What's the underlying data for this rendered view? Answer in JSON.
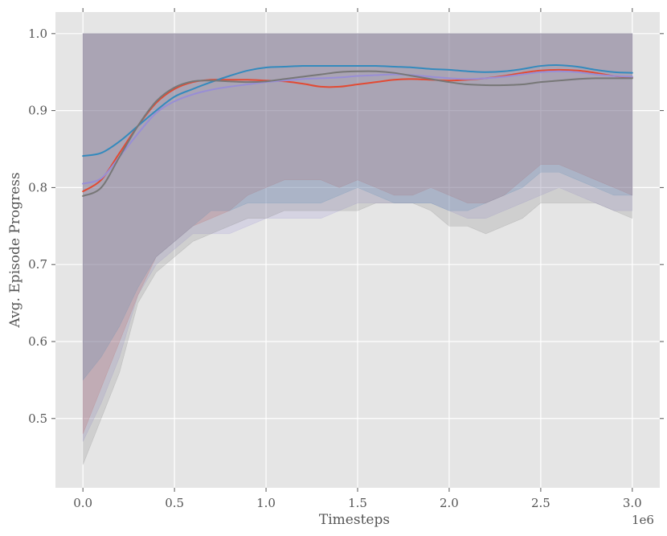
{
  "chart_data": {
    "type": "line",
    "title": "",
    "xlabel": "Timesteps",
    "ylabel": "Avg. Episode Progress",
    "x_offset_label": "1e6",
    "xlim": [
      -0.15,
      3.15
    ],
    "ylim": [
      0.41,
      1.028
    ],
    "x_ticks": [
      0.0,
      0.5,
      1.0,
      1.5,
      2.0,
      2.5,
      3.0
    ],
    "x_tick_labels": [
      "0.0",
      "0.5",
      "1.0",
      "1.5",
      "2.0",
      "2.5",
      "3.0"
    ],
    "y_ticks": [
      0.5,
      0.6,
      0.7,
      0.8,
      0.9,
      1.0
    ],
    "y_tick_labels": [
      "0.5",
      "0.6",
      "0.7",
      "0.8",
      "0.9",
      "1.0"
    ],
    "grid": true,
    "legend": "none",
    "colors": {
      "background": "#e5e5e5",
      "grid": "#ffffff",
      "text": "#555555"
    },
    "series": [
      {
        "color": "#e24a33",
        "x": [
          0.0,
          0.1,
          0.2,
          0.3,
          0.4,
          0.5,
          0.6,
          0.7,
          0.8,
          0.9,
          1.0,
          1.1,
          1.2,
          1.3,
          1.4,
          1.5,
          1.6,
          1.7,
          1.8,
          1.9,
          2.0,
          2.1,
          2.2,
          2.3,
          2.4,
          2.5,
          2.6,
          2.7,
          2.8,
          2.9,
          3.0
        ],
        "y": [
          0.795,
          0.81,
          0.845,
          0.88,
          0.91,
          0.928,
          0.937,
          0.94,
          0.94,
          0.94,
          0.939,
          0.938,
          0.935,
          0.931,
          0.931,
          0.934,
          0.937,
          0.94,
          0.941,
          0.94,
          0.939,
          0.94,
          0.942,
          0.945,
          0.949,
          0.952,
          0.953,
          0.952,
          0.949,
          0.945,
          0.943
        ],
        "band_upper": [
          1.0,
          1.0,
          1.0,
          1.0,
          1.0,
          1.0,
          1.0,
          1.0,
          1.0,
          1.0,
          1.0,
          1.0,
          1.0,
          1.0,
          1.0,
          1.0,
          1.0,
          1.0,
          1.0,
          1.0,
          1.0,
          1.0,
          1.0,
          1.0,
          1.0,
          1.0,
          1.0,
          1.0,
          1.0,
          1.0,
          1.0
        ],
        "band_lower": [
          0.48,
          0.54,
          0.6,
          0.66,
          0.71,
          0.73,
          0.75,
          0.76,
          0.77,
          0.79,
          0.8,
          0.81,
          0.81,
          0.81,
          0.8,
          0.81,
          0.8,
          0.79,
          0.79,
          0.8,
          0.79,
          0.78,
          0.78,
          0.79,
          0.81,
          0.83,
          0.83,
          0.82,
          0.81,
          0.8,
          0.79
        ]
      },
      {
        "color": "#348abd",
        "x": [
          0.0,
          0.1,
          0.2,
          0.3,
          0.4,
          0.5,
          0.6,
          0.7,
          0.8,
          0.9,
          1.0,
          1.1,
          1.2,
          1.3,
          1.4,
          1.5,
          1.6,
          1.7,
          1.8,
          1.9,
          2.0,
          2.1,
          2.2,
          2.3,
          2.4,
          2.5,
          2.6,
          2.7,
          2.8,
          2.9,
          3.0
        ],
        "y": [
          0.841,
          0.845,
          0.86,
          0.88,
          0.9,
          0.918,
          0.928,
          0.937,
          0.945,
          0.952,
          0.956,
          0.957,
          0.958,
          0.958,
          0.958,
          0.958,
          0.958,
          0.957,
          0.956,
          0.954,
          0.953,
          0.951,
          0.95,
          0.951,
          0.954,
          0.958,
          0.959,
          0.957,
          0.953,
          0.95,
          0.949
        ],
        "band_upper": [
          1.0,
          1.0,
          1.0,
          1.0,
          1.0,
          1.0,
          1.0,
          1.0,
          1.0,
          1.0,
          1.0,
          1.0,
          1.0,
          1.0,
          1.0,
          1.0,
          1.0,
          1.0,
          1.0,
          1.0,
          1.0,
          1.0,
          1.0,
          1.0,
          1.0,
          1.0,
          1.0,
          1.0,
          1.0,
          1.0,
          1.0
        ],
        "band_lower": [
          0.55,
          0.58,
          0.62,
          0.67,
          0.71,
          0.73,
          0.75,
          0.77,
          0.77,
          0.78,
          0.78,
          0.78,
          0.78,
          0.78,
          0.79,
          0.8,
          0.79,
          0.78,
          0.78,
          0.78,
          0.77,
          0.77,
          0.78,
          0.79,
          0.8,
          0.82,
          0.82,
          0.81,
          0.8,
          0.79,
          0.79
        ]
      },
      {
        "color": "#988ed5",
        "x": [
          0.0,
          0.1,
          0.2,
          0.3,
          0.4,
          0.5,
          0.6,
          0.7,
          0.8,
          0.9,
          1.0,
          1.1,
          1.2,
          1.3,
          1.4,
          1.5,
          1.6,
          1.7,
          1.8,
          1.9,
          2.0,
          2.1,
          2.2,
          2.3,
          2.4,
          2.5,
          2.6,
          2.7,
          2.8,
          2.9,
          3.0
        ],
        "y": [
          0.805,
          0.812,
          0.84,
          0.87,
          0.897,
          0.912,
          0.921,
          0.927,
          0.931,
          0.934,
          0.937,
          0.939,
          0.941,
          0.942,
          0.943,
          0.945,
          0.946,
          0.947,
          0.946,
          0.944,
          0.942,
          0.941,
          0.942,
          0.944,
          0.947,
          0.95,
          0.951,
          0.95,
          0.947,
          0.945,
          0.944
        ],
        "band_upper": [
          1.0,
          1.0,
          1.0,
          1.0,
          1.0,
          1.0,
          1.0,
          1.0,
          1.0,
          1.0,
          1.0,
          1.0,
          1.0,
          1.0,
          1.0,
          1.0,
          1.0,
          1.0,
          1.0,
          1.0,
          1.0,
          1.0,
          1.0,
          1.0,
          1.0,
          1.0,
          1.0,
          1.0,
          1.0,
          1.0,
          1.0
        ],
        "band_lower": [
          0.47,
          0.52,
          0.58,
          0.66,
          0.7,
          0.72,
          0.74,
          0.74,
          0.74,
          0.75,
          0.76,
          0.76,
          0.76,
          0.76,
          0.77,
          0.78,
          0.78,
          0.78,
          0.78,
          0.78,
          0.77,
          0.76,
          0.76,
          0.77,
          0.78,
          0.79,
          0.8,
          0.79,
          0.78,
          0.77,
          0.77
        ]
      },
      {
        "color": "#777777",
        "x": [
          0.0,
          0.1,
          0.2,
          0.3,
          0.4,
          0.5,
          0.6,
          0.7,
          0.8,
          0.9,
          1.0,
          1.1,
          1.2,
          1.3,
          1.4,
          1.5,
          1.6,
          1.7,
          1.8,
          1.9,
          2.0,
          2.1,
          2.2,
          2.3,
          2.4,
          2.5,
          2.6,
          2.7,
          2.8,
          2.9,
          3.0
        ],
        "y": [
          0.789,
          0.8,
          0.84,
          0.88,
          0.912,
          0.93,
          0.938,
          0.939,
          0.938,
          0.937,
          0.938,
          0.941,
          0.944,
          0.947,
          0.95,
          0.951,
          0.951,
          0.949,
          0.945,
          0.941,
          0.937,
          0.934,
          0.933,
          0.933,
          0.934,
          0.937,
          0.939,
          0.941,
          0.942,
          0.942,
          0.942
        ],
        "band_upper": [
          1.0,
          1.0,
          1.0,
          1.0,
          1.0,
          1.0,
          1.0,
          1.0,
          1.0,
          1.0,
          1.0,
          1.0,
          1.0,
          1.0,
          1.0,
          1.0,
          1.0,
          1.0,
          1.0,
          1.0,
          1.0,
          1.0,
          1.0,
          1.0,
          1.0,
          1.0,
          1.0,
          1.0,
          1.0,
          1.0,
          1.0
        ],
        "band_lower": [
          0.44,
          0.5,
          0.56,
          0.65,
          0.69,
          0.71,
          0.73,
          0.74,
          0.75,
          0.76,
          0.76,
          0.77,
          0.77,
          0.77,
          0.77,
          0.77,
          0.78,
          0.78,
          0.78,
          0.77,
          0.75,
          0.75,
          0.74,
          0.75,
          0.76,
          0.78,
          0.78,
          0.78,
          0.78,
          0.77,
          0.76
        ]
      }
    ]
  }
}
